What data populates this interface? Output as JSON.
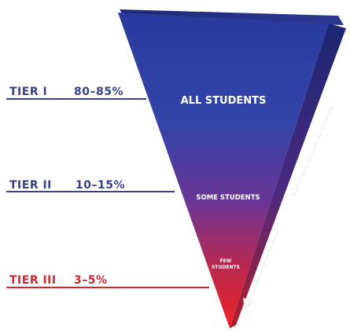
{
  "colors": {
    "top": "#2b3a9a",
    "middle": "#7a2f8c",
    "bottom": "#e8232a",
    "side_dark": "#1c2670",
    "tier_blue": "#3a3f8a",
    "tier_red": "#d9232b"
  },
  "tiers": [
    {
      "label": "TIER I",
      "percent": "80–85%",
      "band_label": "ALL STUDENTS"
    },
    {
      "label": "TIER II",
      "percent": "10–15%",
      "band_label": "SOME STUDENTS"
    },
    {
      "label": "TIER III",
      "percent": "3–5%",
      "band_label": "FEW STUDENTS"
    }
  ],
  "side_label": "Intensifying Support for Students"
}
